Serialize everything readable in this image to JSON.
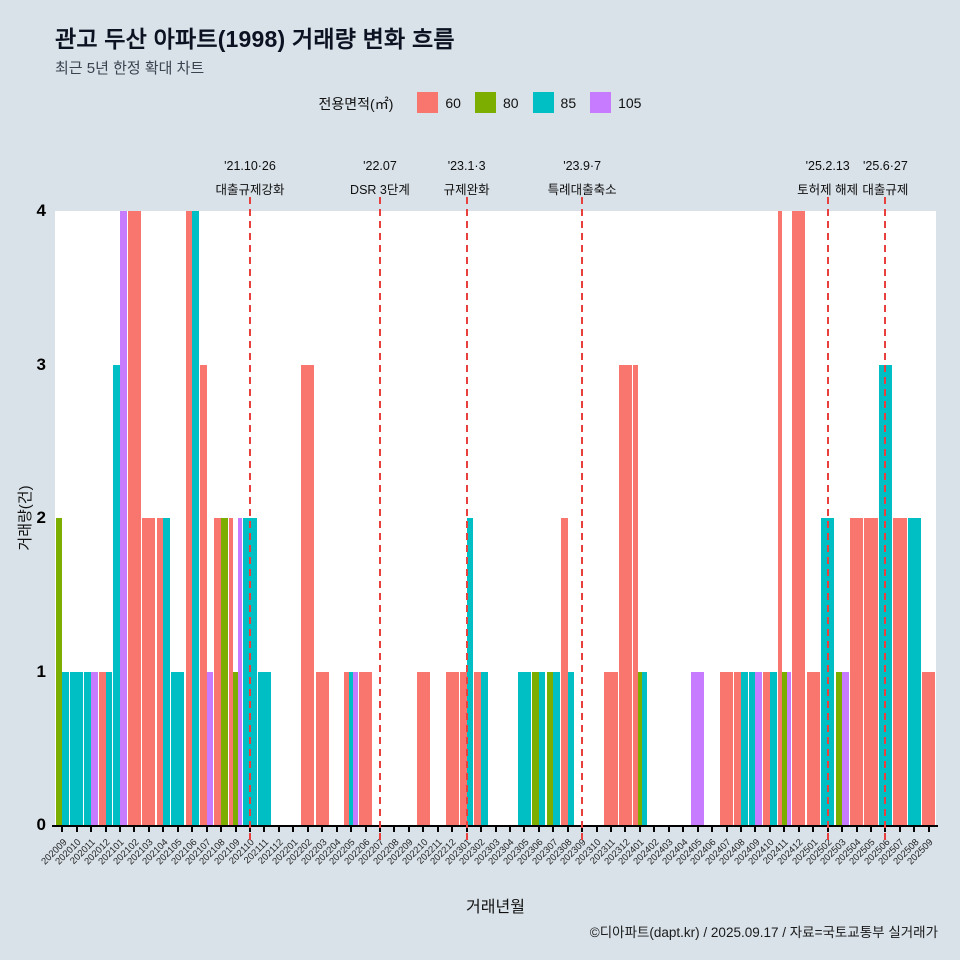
{
  "header": {
    "title": "관고 두산 아파트(1998) 거래량 변화 흐름",
    "subtitle": "최근 5년 한정 확대 차트"
  },
  "footer": {
    "credit": "©디아파트(dapt.kr) / 2025.09.17 / 자료=국토교통부 실거래가"
  },
  "chart_data": {
    "type": "bar",
    "title": "관고 두산 아파트(1998) 거래량 변화 흐름",
    "subtitle": "최근 5년 한정 확대 차트",
    "xlabel": "거래년월",
    "ylabel": "거래량(건)",
    "legend_title": "전용면적(㎡)",
    "legend_position": "top",
    "grid": false,
    "ylim": [
      0,
      4
    ],
    "yticks": [
      0,
      1,
      2,
      3,
      4
    ],
    "categories": [
      "202009",
      "202010",
      "202011",
      "202012",
      "202101",
      "202102",
      "202103",
      "202104",
      "202105",
      "202106",
      "202107",
      "202108",
      "202109",
      "202110",
      "202111",
      "202112",
      "202201",
      "202202",
      "202203",
      "202204",
      "202205",
      "202206",
      "202207",
      "202208",
      "202209",
      "202210",
      "202211",
      "202212",
      "202301",
      "202302",
      "202303",
      "202304",
      "202305",
      "202306",
      "202307",
      "202308",
      "202309",
      "202310",
      "202311",
      "202312",
      "202401",
      "202402",
      "202403",
      "202404",
      "202405",
      "202406",
      "202407",
      "202408",
      "202409",
      "202410",
      "202411",
      "202412",
      "202501",
      "202502",
      "202503",
      "202504",
      "202505",
      "202506",
      "202507",
      "202508",
      "202509"
    ],
    "series": [
      {
        "name": "60",
        "color": "#F8766D",
        "values": [
          0,
          0,
          0,
          1,
          0,
          4,
          2,
          2,
          0,
          4,
          3,
          2,
          2,
          0,
          0,
          0,
          0,
          3,
          1,
          0,
          1,
          1,
          0,
          0,
          0,
          1,
          0,
          1,
          1,
          1,
          0,
          0,
          0,
          0,
          0,
          2,
          0,
          0,
          1,
          3,
          3,
          0,
          0,
          0,
          0,
          0,
          1,
          1,
          0,
          1,
          4,
          4,
          1,
          0,
          0,
          2,
          2,
          0,
          2,
          0,
          1
        ]
      },
      {
        "name": "80",
        "color": "#7CAE00",
        "values": [
          2,
          0,
          0,
          0,
          0,
          0,
          0,
          0,
          0,
          0,
          0,
          2,
          1,
          0,
          0,
          0,
          0,
          0,
          0,
          0,
          0,
          0,
          0,
          0,
          0,
          0,
          0,
          0,
          0,
          0,
          0,
          0,
          0,
          1,
          1,
          0,
          0,
          0,
          0,
          0,
          1,
          0,
          0,
          0,
          0,
          0,
          0,
          0,
          0,
          0,
          1,
          0,
          0,
          0,
          1,
          0,
          0,
          0,
          0,
          0,
          0
        ]
      },
      {
        "name": "85",
        "color": "#00BFC4",
        "values": [
          1,
          1,
          1,
          1,
          3,
          0,
          0,
          2,
          1,
          4,
          0,
          0,
          0,
          2,
          1,
          0,
          0,
          0,
          0,
          0,
          1,
          0,
          0,
          0,
          0,
          0,
          0,
          0,
          2,
          1,
          0,
          0,
          1,
          1,
          1,
          1,
          0,
          0,
          0,
          0,
          1,
          0,
          0,
          0,
          0,
          0,
          0,
          1,
          1,
          1,
          0,
          0,
          0,
          2,
          0,
          0,
          0,
          3,
          0,
          2,
          0
        ]
      },
      {
        "name": "105",
        "color": "#C77CFF",
        "values": [
          0,
          0,
          1,
          0,
          4,
          0,
          0,
          0,
          0,
          0,
          1,
          0,
          2,
          0,
          0,
          0,
          0,
          0,
          0,
          0,
          1,
          0,
          0,
          0,
          0,
          0,
          0,
          0,
          0,
          0,
          0,
          0,
          0,
          0,
          0,
          0,
          0,
          0,
          0,
          0,
          0,
          0,
          0,
          0,
          1,
          0,
          0,
          0,
          1,
          0,
          1,
          0,
          0,
          0,
          1,
          0,
          0,
          0,
          0,
          0,
          0
        ]
      }
    ],
    "events": [
      {
        "month": "202110",
        "date": "'21.10·26",
        "label": "대출규제강화"
      },
      {
        "month": "202207",
        "date": "'22.07",
        "label": "DSR 3단계"
      },
      {
        "month": "202301",
        "date": "'23.1·3",
        "label": "규제완화"
      },
      {
        "month": "202309",
        "date": "'23.9·7",
        "label": "특례대출축소"
      },
      {
        "month": "202502",
        "date": "'25.2.13",
        "label": "토허제 해제"
      },
      {
        "month": "202506",
        "date": "'25.6·27",
        "label": "대출규제"
      }
    ],
    "event_line_color": "#e8413d",
    "colors": {
      "background": "#d9e2e9",
      "panel": "#ffffff",
      "axis": "#000000",
      "text": "#111111"
    }
  }
}
